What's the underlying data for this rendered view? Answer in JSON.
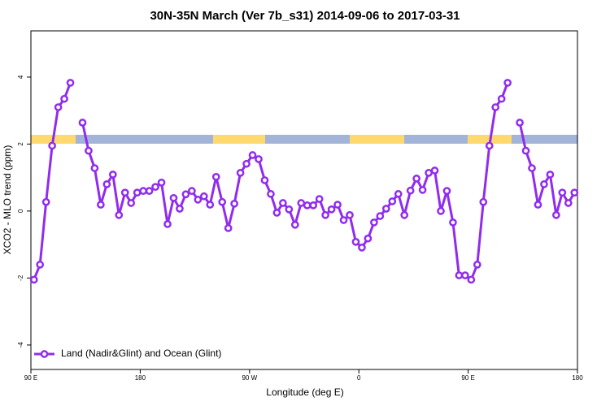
{
  "chart_data": {
    "type": "line",
    "title": "30N-35N March (Ver 7b_s31)   2014-09-06 to 2017-03-31",
    "x_label": "Longitude (deg E)",
    "y_label": "XCO2 - MLO trend (ppm)",
    "x": [
      92.5,
      97.5,
      102.5,
      107.5,
      112.5,
      117.5,
      122.5,
      127.5,
      132.5,
      137.5,
      142.5,
      147.5,
      152.5,
      157.5,
      162.5,
      167.5,
      172.5,
      177.5,
      182.5,
      187.5,
      192.5,
      197.5,
      202.5,
      207.5,
      212.5,
      217.5,
      222.5,
      227.5,
      232.5,
      237.5,
      242.5,
      247.5,
      252.5,
      257.5,
      262.5,
      267.5,
      272.5,
      277.5,
      282.5,
      287.5,
      292.5,
      297.5,
      302.5,
      307.5,
      312.5,
      317.5,
      322.5,
      327.5,
      332.5,
      337.5,
      342.5,
      347.5,
      352.5,
      357.5,
      362.5,
      367.5,
      372.5,
      377.5,
      382.5,
      387.5,
      392.5,
      397.5,
      402.5,
      407.5,
      412.5,
      417.5,
      422.5,
      427.5,
      432.5,
      437.5,
      442.5,
      447.5,
      452.5,
      457.5,
      462.5,
      467.5,
      472.5,
      477.5,
      482.5,
      487.5,
      492.5,
      497.5,
      502.5,
      507.5,
      512.5,
      517.5,
      522.5,
      527.5,
      532.5,
      537.5
    ],
    "series": [
      {
        "name": "Land (Nadir&Glint) and Ocean (Glint)",
        "color": "#912cee",
        "values": [
          -2.05,
          -1.6,
          0.27,
          1.95,
          3.1,
          3.35,
          3.83,
          null,
          2.64,
          1.8,
          1.28,
          0.19,
          0.8,
          1.09,
          -0.12,
          0.55,
          0.24,
          0.55,
          0.6,
          0.6,
          0.72,
          0.85,
          -0.39,
          0.39,
          0.07,
          0.5,
          0.6,
          0.34,
          0.44,
          0.19,
          1.02,
          0.27,
          -0.51,
          0.22,
          1.14,
          1.41,
          1.67,
          1.55,
          0.92,
          0.51,
          -0.05,
          0.24,
          0.05,
          -0.41,
          0.24,
          0.17,
          0.17,
          0.36,
          -0.12,
          0.05,
          0.19,
          -0.27,
          -0.12,
          -0.92,
          -1.09,
          -0.82,
          -0.34,
          -0.15,
          0.07,
          0.29,
          0.51,
          -0.12,
          0.61,
          0.97,
          0.63,
          1.14,
          1.21,
          0,
          0.6,
          -0.34,
          -1.92,
          -1.92,
          -2.05,
          -1.6,
          0.27,
          1.95,
          3.1,
          3.35,
          3.83,
          null,
          2.64,
          1.8,
          1.28,
          0.19,
          0.8,
          1.09,
          -0.12,
          0.55,
          0.24,
          0.55
        ]
      }
    ],
    "xlim": [
      90,
      540
    ],
    "xticks": [
      {
        "value": 90,
        "label": "90 E"
      },
      180,
      {
        "value": 270,
        "label": "90 W"
      },
      {
        "value": 360,
        "label": "0"
      },
      {
        "value": 450,
        "label": "90 E"
      },
      {
        "value": 540,
        "label": "180"
      }
    ],
    "ylim": [
      -4.73,
      5.38
    ],
    "yticks": [
      -4,
      -2,
      0,
      2,
      4
    ],
    "legend": "bottom-left"
  }
}
